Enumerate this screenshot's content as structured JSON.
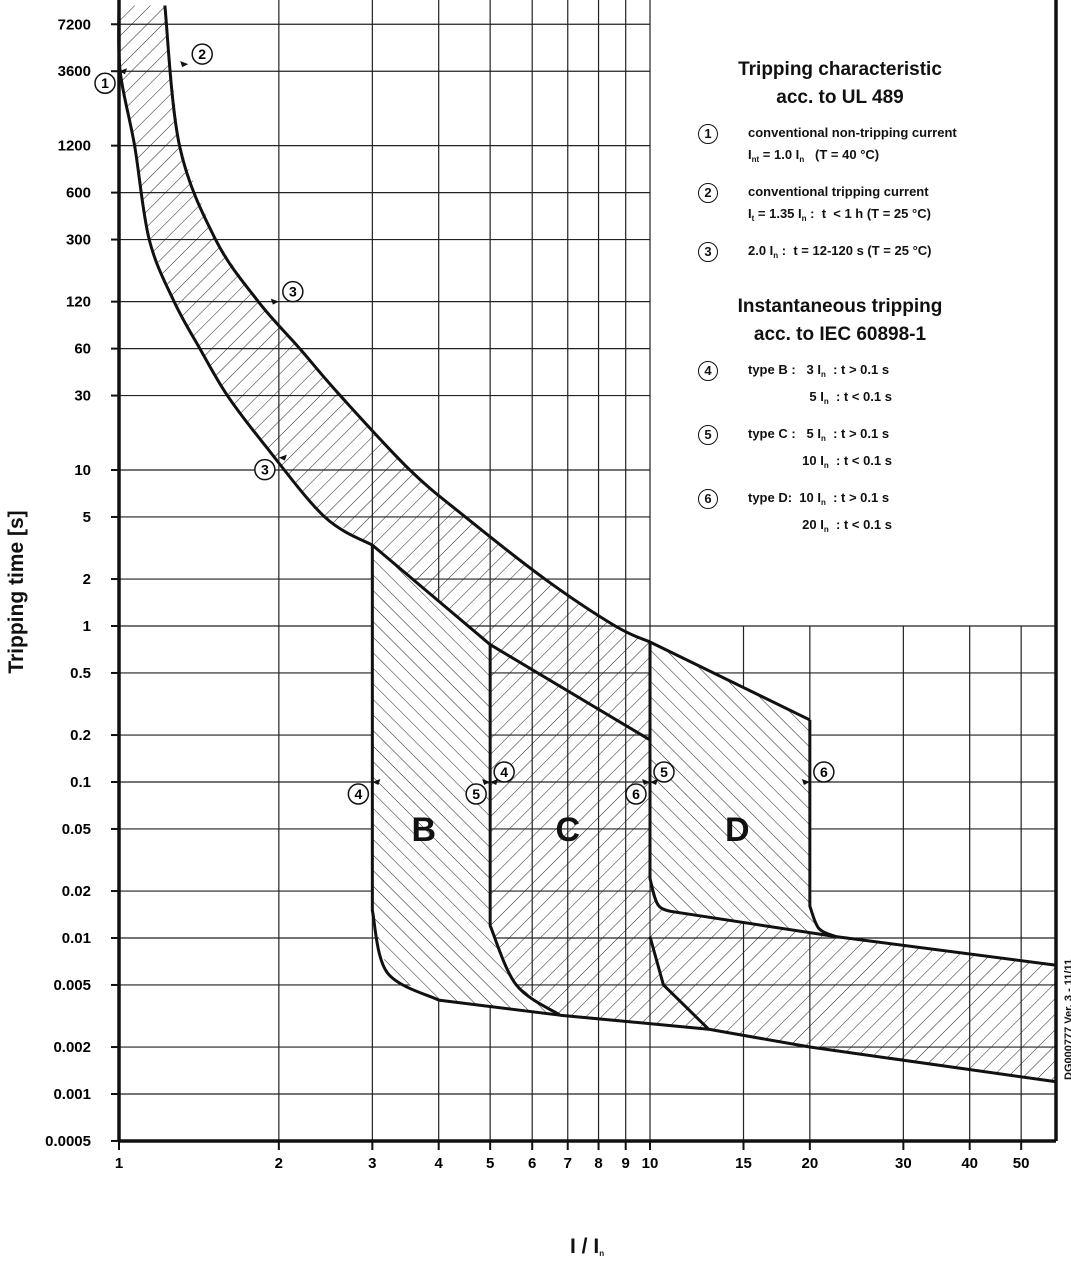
{
  "chart_data": {
    "type": "line",
    "xscale": "log",
    "yscale": "log",
    "xlabel_main": "I / I",
    "xlabel_sub": "n",
    "ylabel": "Tripping time [s]",
    "xlim": [
      1,
      58
    ],
    "ylim": [
      0.0005,
      9600
    ],
    "grid": true,
    "x_ticks": [
      1,
      2,
      3,
      4,
      5,
      6,
      7,
      8,
      9,
      10,
      15,
      20,
      30,
      40,
      50
    ],
    "x_tick_labels": [
      "1",
      "2",
      "3",
      "4",
      "5",
      "6",
      "7",
      "8",
      "9",
      "10",
      "15",
      "20",
      "30",
      "40",
      "50"
    ],
    "y_ticks": [
      7200,
      3600,
      1200,
      600,
      300,
      120,
      60,
      30,
      10,
      5,
      2,
      1,
      0.5,
      0.2,
      0.1,
      0.05,
      0.02,
      0.01,
      0.005,
      0.002,
      0.001,
      0.0005
    ],
    "y_tick_labels": [
      "7200",
      "3600",
      "1200",
      "600",
      "300",
      "120",
      "60",
      "30",
      "10",
      "5",
      "2",
      "1",
      "0.5",
      "0.2",
      "0.1",
      "0.05",
      "0.02",
      "0.01",
      "0.005",
      "0.002",
      "0.001",
      "0.0005"
    ],
    "curves": {
      "thermal_upper": [
        [
          1.22,
          9500
        ],
        [
          1.3,
          1200
        ],
        [
          1.52,
          300
        ],
        [
          1.83,
          120
        ],
        [
          2.19,
          60
        ],
        [
          2.61,
          30
        ],
        [
          3.53,
          10
        ],
        [
          4.49,
          5
        ],
        [
          6.34,
          2
        ],
        [
          8.6,
          1
        ],
        [
          10,
          0.79
        ],
        [
          20,
          0.25
        ]
      ],
      "thermal_lower": [
        [
          1.0,
          9500
        ],
        [
          1.005,
          3600
        ],
        [
          1.07,
          1200
        ],
        [
          1.14,
          300
        ],
        [
          1.27,
          120
        ],
        [
          1.42,
          60
        ],
        [
          1.6,
          30
        ],
        [
          1.88,
          14.5
        ],
        [
          2.44,
          5
        ],
        [
          3.0,
          3.3
        ],
        [
          5.0,
          0.76
        ],
        [
          10,
          0.186
        ]
      ],
      "type_b": [
        [
          3,
          3.3
        ],
        [
          3,
          0.015
        ],
        [
          3.2,
          0.006
        ],
        [
          4.0,
          0.004
        ]
      ],
      "type_c": [
        [
          5,
          0.76
        ],
        [
          5,
          0.012
        ],
        [
          5.6,
          0.005
        ],
        [
          6.77,
          0.0032
        ]
      ],
      "type_d_upper": [
        [
          20,
          0.25
        ],
        [
          20,
          0.016
        ],
        [
          20.8,
          0.0115
        ],
        [
          22.4,
          0.0102
        ]
      ],
      "type_d_inner": [
        [
          10,
          0.79
        ],
        [
          10,
          0.024
        ],
        [
          10.4,
          0.016
        ],
        [
          11.4,
          0.0145
        ],
        [
          22.4,
          0.0102
        ]
      ],
      "type_d_lower": [
        [
          10,
          0.0102
        ],
        [
          10.6,
          0.005
        ],
        [
          12.9,
          0.0026
        ]
      ],
      "band_top": [
        [
          22.4,
          0.0102
        ],
        [
          58,
          0.0067
        ]
      ],
      "band_bottom": [
        [
          4.0,
          0.004
        ],
        [
          6.77,
          0.0032
        ],
        [
          12.9,
          0.0026
        ],
        [
          20,
          0.002
        ],
        [
          58,
          0.0012
        ]
      ]
    },
    "region_labels": [
      {
        "text": "B",
        "x": 3.75,
        "t": 0.05
      },
      {
        "text": "C",
        "x": 7.0,
        "t": 0.05
      },
      {
        "text": "D",
        "x": 14.6,
        "t": 0.05
      }
    ],
    "markers": [
      {
        "label": "1",
        "x": 1.0,
        "t": 3600,
        "side": "left"
      },
      {
        "label": "2",
        "x": 1.35,
        "t": 4000,
        "side": "right"
      },
      {
        "label": "3",
        "x": 2.0,
        "t": 120,
        "side": "right"
      },
      {
        "label": "3",
        "x": 2.0,
        "t": 12,
        "side": "left"
      },
      {
        "label": "4",
        "x": 3,
        "t": 0.1,
        "side": "left"
      },
      {
        "label": "4",
        "x": 5,
        "t": 0.1,
        "side": "right"
      },
      {
        "label": "5",
        "x": 5,
        "t": 0.1,
        "side": "left"
      },
      {
        "label": "5",
        "x": 10,
        "t": 0.1,
        "side": "right"
      },
      {
        "label": "6",
        "x": 10,
        "t": 0.1,
        "side": "left"
      },
      {
        "label": "6",
        "x": 20,
        "t": 0.1,
        "side": "right"
      }
    ]
  },
  "legend": {
    "title1": [
      "Tripping characteristic",
      "acc. to UL 489"
    ],
    "items1": [
      {
        "num": "1",
        "lines": [
          [
            {
              "t": "conventional non-tripping current"
            }
          ],
          [
            {
              "t": "I"
            },
            {
              "s": "nt"
            },
            {
              "t": " = 1.0 I"
            },
            {
              "s": "n"
            },
            {
              "t": "   (T = 40 °C)"
            }
          ]
        ]
      },
      {
        "num": "2",
        "lines": [
          [
            {
              "t": "conventional tripping current"
            }
          ],
          [
            {
              "t": "I"
            },
            {
              "s": "t"
            },
            {
              "t": " = 1.35 I"
            },
            {
              "s": "n"
            },
            {
              "t": " :  t  < 1 h (T = 25 °C)"
            }
          ]
        ]
      },
      {
        "num": "3",
        "lines": [
          [
            {
              "t": "2.0 I"
            },
            {
              "s": "n"
            },
            {
              "t": " :  t = 12-120 s (T = 25 °C)"
            }
          ]
        ]
      }
    ],
    "title2": [
      "Instantaneous tripping",
      "acc. to IEC 60898-1"
    ],
    "items2": [
      {
        "num": "4",
        "lines": [
          [
            {
              "t": "type B :   3 I"
            },
            {
              "s": "n"
            },
            {
              "t": "  : t > 0.1 s"
            }
          ],
          [
            {
              "t": "                 5 I"
            },
            {
              "s": "n"
            },
            {
              "t": "  : t < 0.1 s"
            }
          ]
        ]
      },
      {
        "num": "5",
        "lines": [
          [
            {
              "t": "type C :   5 I"
            },
            {
              "s": "n"
            },
            {
              "t": "  : t > 0.1 s"
            }
          ],
          [
            {
              "t": "               10 I"
            },
            {
              "s": "n"
            },
            {
              "t": "  : t < 0.1 s"
            }
          ]
        ]
      },
      {
        "num": "6",
        "lines": [
          [
            {
              "t": "type D:  10 I"
            },
            {
              "s": "n"
            },
            {
              "t": "  : t > 0.1 s"
            }
          ],
          [
            {
              "t": "               20 I"
            },
            {
              "s": "n"
            },
            {
              "t": "  : t < 0.1 s"
            }
          ]
        ]
      }
    ]
  },
  "version_label": "DG000777 Ver. 3 - 11/11",
  "colors": {
    "ink": "#111111",
    "grid": "#222222",
    "background": "#ffffff"
  }
}
